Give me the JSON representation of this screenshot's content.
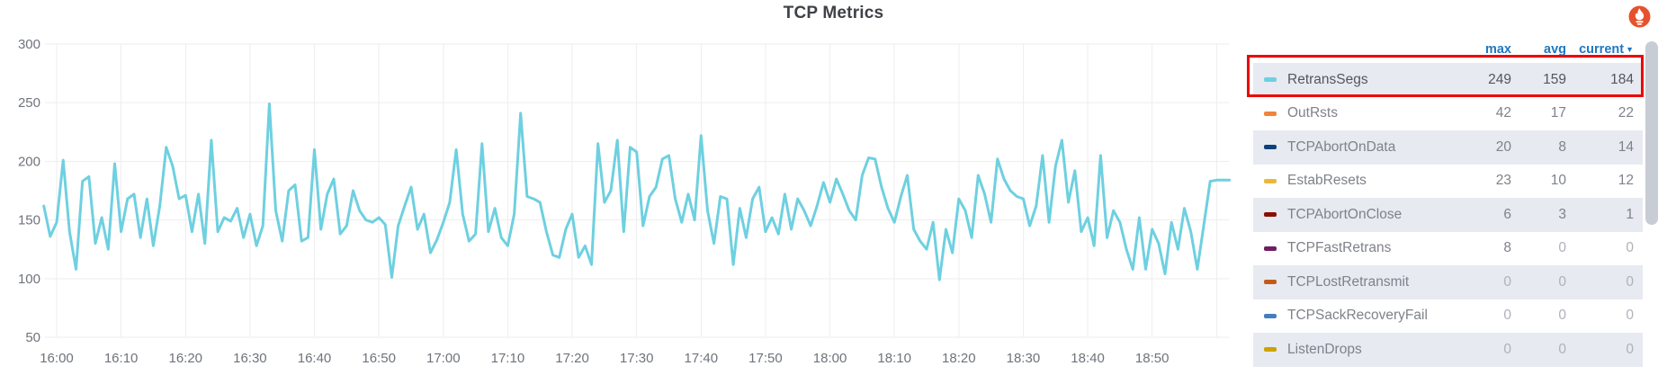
{
  "panel": {
    "title": "TCP Metrics"
  },
  "chart_data": {
    "type": "line",
    "title": "TCP Metrics",
    "grid": true,
    "legend_position": "right-table",
    "x_axis": {
      "start_label": "16:00",
      "tick_interval_minutes": 10,
      "tick_labels": [
        "16:00",
        "16:10",
        "16:20",
        "16:30",
        "16:40",
        "16:50",
        "17:00",
        "17:10",
        "17:20",
        "17:30",
        "17:40",
        "17:50",
        "18:00",
        "18:10",
        "18:20",
        "18:30",
        "18:40",
        "18:50"
      ],
      "unlabeled_last_gridline": "19:00"
    },
    "y_axis": {
      "min": 50,
      "max": 300,
      "ticks": [
        50,
        100,
        150,
        200,
        250,
        300
      ]
    },
    "series": [
      {
        "name": "RetransSegs",
        "color": "#6ED0E0",
        "start_time": "15:58",
        "step_minutes": 1,
        "values": [
          162,
          136,
          148,
          201,
          140,
          108,
          183,
          187,
          130,
          152,
          125,
          198,
          140,
          168,
          172,
          135,
          168,
          128,
          162,
          212,
          196,
          168,
          171,
          140,
          172,
          130,
          218,
          140,
          152,
          149,
          160,
          135,
          155,
          128,
          145,
          249,
          158,
          132,
          175,
          180,
          132,
          135,
          210,
          142,
          172,
          185,
          138,
          145,
          175,
          158,
          150,
          148,
          152,
          146,
          101,
          145,
          162,
          178,
          142,
          155,
          122,
          133,
          148,
          165,
          210,
          155,
          132,
          138,
          215,
          140,
          160,
          135,
          128,
          155,
          241,
          170,
          168,
          165,
          140,
          120,
          118,
          142,
          155,
          118,
          128,
          112,
          215,
          165,
          175,
          218,
          140,
          212,
          208,
          145,
          170,
          178,
          202,
          205,
          168,
          148,
          172,
          150,
          222,
          158,
          130,
          170,
          168,
          112,
          160,
          135,
          168,
          178,
          140,
          152,
          138,
          172,
          142,
          168,
          158,
          145,
          162,
          182,
          165,
          185,
          172,
          158,
          150,
          188,
          203,
          202,
          178,
          160,
          148,
          170,
          188,
          142,
          132,
          125,
          148,
          99,
          142,
          122,
          168,
          158,
          135,
          188,
          172,
          148,
          202,
          185,
          175,
          170,
          168,
          145,
          162,
          205,
          148,
          196,
          218,
          165,
          192,
          140,
          152,
          128,
          205,
          135,
          158,
          148,
          125,
          108,
          152,
          108,
          142,
          130,
          104,
          148,
          125,
          160,
          140,
          108,
          145,
          183,
          184,
          184,
          184
        ]
      }
    ]
  },
  "legend": {
    "columns": [
      "max",
      "avg",
      "current"
    ],
    "sort": {
      "column": "current",
      "direction": "desc"
    },
    "rows": [
      {
        "name": "RetransSegs",
        "color": "#6ED0E0",
        "max": 249,
        "avg": 159,
        "current": 184,
        "highlighted": true
      },
      {
        "name": "OutRsts",
        "color": "#EF843C",
        "max": 42,
        "avg": 17,
        "current": 22
      },
      {
        "name": "TCPAbortOnData",
        "color": "#0A437C",
        "max": 20,
        "avg": 8,
        "current": 14
      },
      {
        "name": "EstabResets",
        "color": "#EAB839",
        "max": 23,
        "avg": 10,
        "current": 12
      },
      {
        "name": "TCPAbortOnClose",
        "color": "#890F02",
        "max": 6,
        "avg": 3,
        "current": 1
      },
      {
        "name": "TCPFastRetrans",
        "color": "#6D1F62",
        "max": 8,
        "avg": 0,
        "current": 0
      },
      {
        "name": "TCPLostRetransmit",
        "color": "#C15C17",
        "max": 0,
        "avg": 0,
        "current": 0
      },
      {
        "name": "TCPSackRecoveryFail",
        "color": "#447EBC",
        "max": 0,
        "avg": 0,
        "current": 0
      },
      {
        "name": "ListenDrops",
        "color": "#CCA300",
        "max": 0,
        "avg": 0,
        "current": 0
      }
    ]
  },
  "annotation_box": {
    "color": "#ee0000",
    "target_row": "RetransSegs"
  },
  "colors": {
    "line": "#6ED0E0",
    "grid": "#eeeeee",
    "axis_text": "#6f737b",
    "header_link": "#1f78c1",
    "row_shade": "#e7eaf0",
    "scrollbar": "#c8ccd4",
    "prometheus_orange": "#E6522C",
    "annotation_red": "#ee0000"
  }
}
